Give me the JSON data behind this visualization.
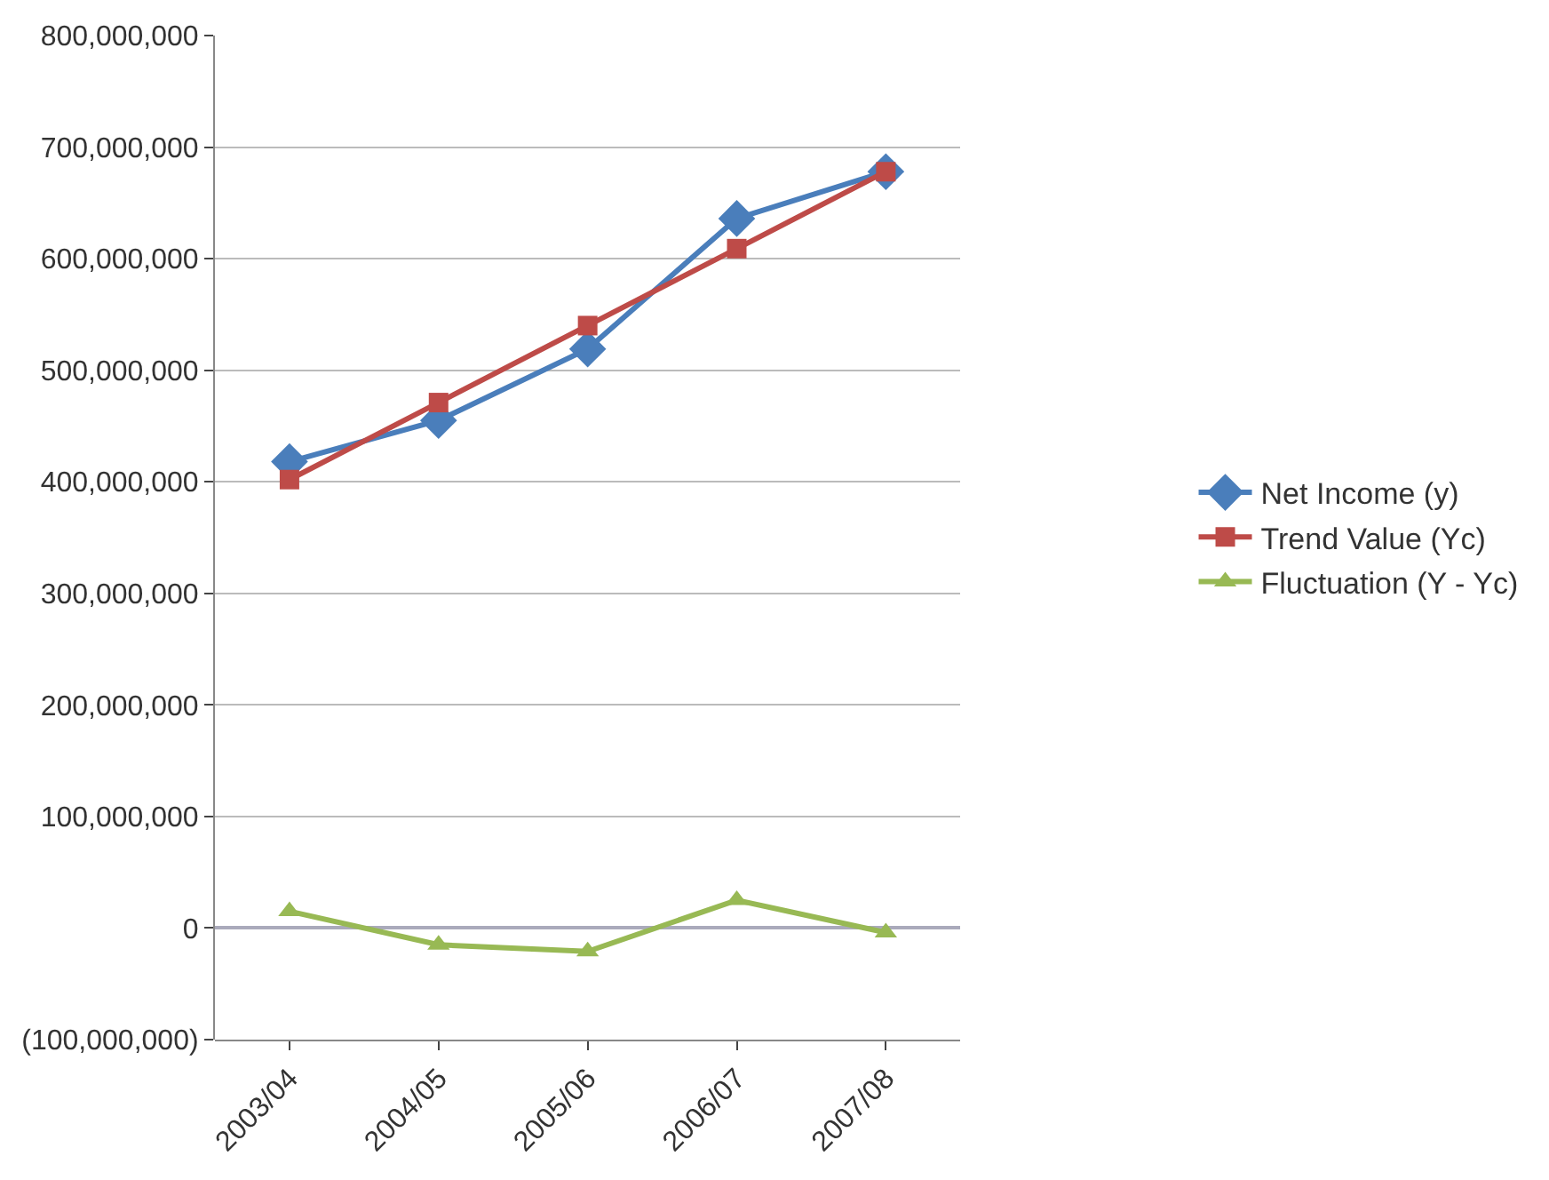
{
  "chart_data": {
    "type": "line",
    "categories": [
      "2003/04",
      "2004/05",
      "2005/06",
      "2006/07",
      "2007/08"
    ],
    "series": [
      {
        "name": "Net Income (y)",
        "color": "#4a7ebb",
        "marker": "diamond",
        "values": [
          418000000,
          455000000,
          519000000,
          636000000,
          678000000
        ]
      },
      {
        "name": "Trend Value (Yc)",
        "color": "#be4b48",
        "marker": "square",
        "values": [
          402000000,
          471000000,
          540000000,
          609000000,
          678000000
        ]
      },
      {
        "name": "Fluctuation (Y - Yc)",
        "color": "#98b954",
        "marker": "triangle",
        "values": [
          15000000,
          -15000000,
          -21000000,
          25000000,
          -4000000
        ]
      }
    ],
    "ylim": [
      -100000000,
      800000000
    ],
    "yticks": [
      {
        "value": -100000000,
        "label": "(100,000,000)"
      },
      {
        "value": 0,
        "label": "0"
      },
      {
        "value": 100000000,
        "label": "100,000,000"
      },
      {
        "value": 200000000,
        "label": "200,000,000"
      },
      {
        "value": 300000000,
        "label": "300,000,000"
      },
      {
        "value": 400000000,
        "label": "400,000,000"
      },
      {
        "value": 500000000,
        "label": "500,000,000"
      },
      {
        "value": 600000000,
        "label": "600,000,000"
      },
      {
        "value": 700000000,
        "label": "700,000,000"
      },
      {
        "value": 800000000,
        "label": "800,000,000"
      }
    ],
    "grid": "y",
    "legend": "right"
  }
}
